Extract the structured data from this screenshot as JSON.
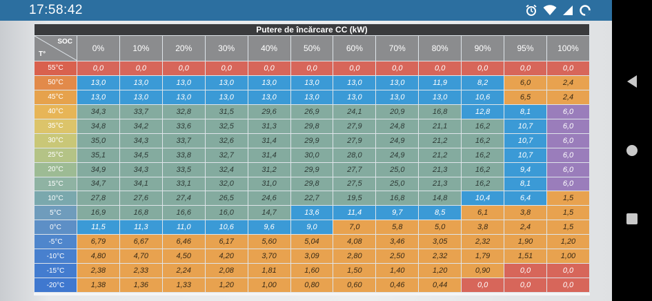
{
  "status_bar": {
    "time": "17:58:42",
    "icons": [
      "alarm-icon",
      "wifi-icon",
      "signal-icon",
      "battery-icon"
    ]
  },
  "nav_bar": {
    "buttons": [
      "back-icon",
      "home-icon",
      "recents-icon"
    ]
  },
  "table": {
    "title": "Putere de încărcare CC (kW)",
    "corner_soc": "SOC",
    "corner_temp": "T°",
    "soc_headers": [
      "0%",
      "10%",
      "20%",
      "30%",
      "40%",
      "50%",
      "60%",
      "70%",
      "80%",
      "90%",
      "95%",
      "100%"
    ],
    "rows": [
      {
        "temp": "55°C",
        "values": [
          "0,0",
          "0,0",
          "0,0",
          "0,0",
          "0,0",
          "0,0",
          "0,0",
          "0,0",
          "0,0",
          "0,0",
          "0,0",
          "0,0"
        ]
      },
      {
        "temp": "50°C",
        "values": [
          "13,0",
          "13,0",
          "13,0",
          "13,0",
          "13,0",
          "13,0",
          "13,0",
          "13,0",
          "11,9",
          "8,2",
          "6,0",
          "2,4"
        ]
      },
      {
        "temp": "45°C",
        "values": [
          "13,0",
          "13,0",
          "13,0",
          "13,0",
          "13,0",
          "13,0",
          "13,0",
          "13,0",
          "13,0",
          "10,6",
          "6,5",
          "2,4"
        ]
      },
      {
        "temp": "40°C",
        "values": [
          "34,3",
          "33,7",
          "32,8",
          "31,5",
          "29,6",
          "26,9",
          "24,1",
          "20,9",
          "16,8",
          "12,8",
          "8,1",
          "6,0"
        ]
      },
      {
        "temp": "35°C",
        "values": [
          "34,8",
          "34,2",
          "33,6",
          "32,5",
          "31,3",
          "29,8",
          "27,9",
          "24,8",
          "21,1",
          "16,2",
          "10,7",
          "6,0"
        ]
      },
      {
        "temp": "30°C",
        "values": [
          "35,0",
          "34,3",
          "33,7",
          "32,6",
          "31,4",
          "29,9",
          "27,9",
          "24,9",
          "21,2",
          "16,2",
          "10,7",
          "6,0"
        ]
      },
      {
        "temp": "25°C",
        "values": [
          "35,1",
          "34,5",
          "33,8",
          "32,7",
          "31,4",
          "30,0",
          "28,0",
          "24,9",
          "21,2",
          "16,2",
          "10,7",
          "6,0"
        ]
      },
      {
        "temp": "20°C",
        "values": [
          "34,9",
          "34,3",
          "33,5",
          "32,4",
          "31,2",
          "29,9",
          "27,7",
          "25,0",
          "21,3",
          "16,2",
          "9,4",
          "6,0"
        ]
      },
      {
        "temp": "15°C",
        "values": [
          "34,7",
          "34,1",
          "33,1",
          "32,0",
          "31,0",
          "29,8",
          "27,5",
          "25,0",
          "21,3",
          "16,2",
          "8,1",
          "6,0"
        ]
      },
      {
        "temp": "10°C",
        "values": [
          "27,8",
          "27,6",
          "27,4",
          "26,5",
          "24,6",
          "22,7",
          "19,5",
          "16,8",
          "14,8",
          "10,4",
          "6,4",
          "1,5"
        ]
      },
      {
        "temp": "5°C",
        "values": [
          "16,9",
          "16,8",
          "16,6",
          "16,0",
          "14,7",
          "13,6",
          "11,4",
          "9,7",
          "8,5",
          "6,1",
          "3,8",
          "1,5"
        ]
      },
      {
        "temp": "0°C",
        "values": [
          "11,5",
          "11,3",
          "11,0",
          "10,6",
          "9,6",
          "9,0",
          "7,0",
          "5,8",
          "5,0",
          "3,8",
          "2,4",
          "1,5"
        ]
      },
      {
        "temp": "-5°C",
        "values": [
          "6,79",
          "6,67",
          "6,46",
          "6,17",
          "5,60",
          "5,04",
          "4,08",
          "3,46",
          "3,05",
          "2,32",
          "1,90",
          "1,20"
        ]
      },
      {
        "temp": "-10°C",
        "values": [
          "4,80",
          "4,70",
          "4,50",
          "4,20",
          "3,70",
          "3,09",
          "2,80",
          "2,50",
          "2,32",
          "1,79",
          "1,51",
          "1,00"
        ]
      },
      {
        "temp": "-15°C",
        "values": [
          "2,38",
          "2,33",
          "2,24",
          "2,08",
          "1,81",
          "1,60",
          "1,50",
          "1,40",
          "1,20",
          "0,90",
          "0,0",
          "0,0"
        ]
      },
      {
        "temp": "-20°C",
        "values": [
          "1,38",
          "1,36",
          "1,33",
          "1,20",
          "1,00",
          "0,80",
          "0,60",
          "0,46",
          "0,44",
          "0,0",
          "0,0",
          "0,0"
        ]
      }
    ],
    "temp_colors": [
      "#d9614e",
      "#e28a4a",
      "#e6a24c",
      "#e7b557",
      "#dcc46a",
      "#c9c777",
      "#b4c386",
      "#9dbb94",
      "#8fb3a3",
      "#7aa8ad",
      "#6f9cbc",
      "#5d8fc6",
      "#4f86cc",
      "#4880ce",
      "#437ccf",
      "#3f78cf"
    ],
    "colors": {
      "red": "#d7665a",
      "blue": "#3b9ad6",
      "teal": "#84ab9f",
      "orange": "#e8a24f",
      "purple": "#9a7dbb"
    }
  }
}
